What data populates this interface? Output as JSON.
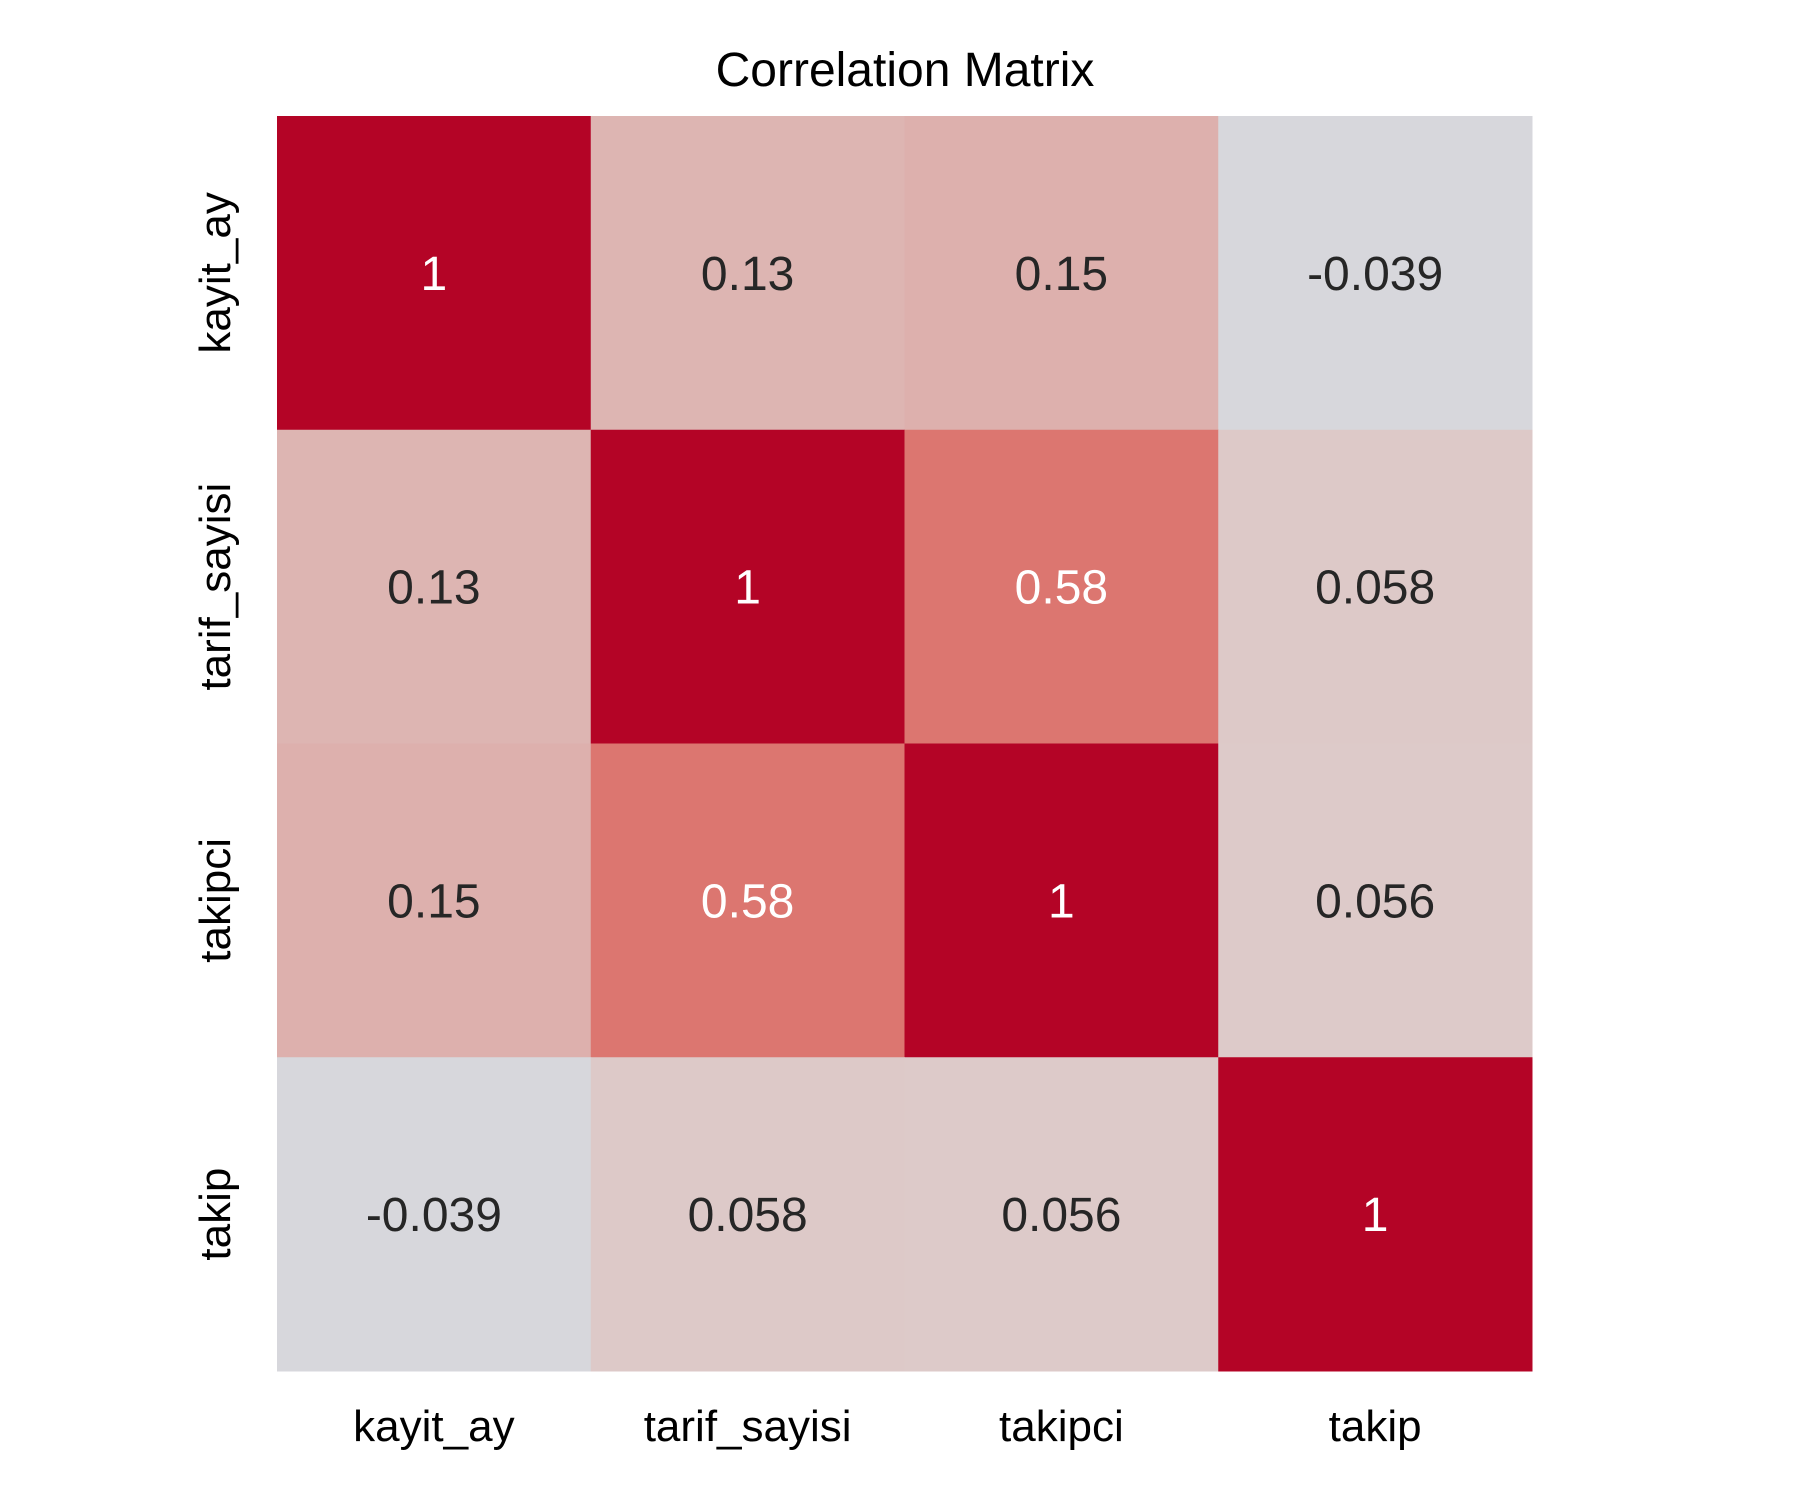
{
  "chart_data": {
    "type": "heatmap",
    "title": "Correlation Matrix",
    "x_categories": [
      "kayit_ay",
      "tarif_sayisi",
      "takipci",
      "takip"
    ],
    "y_categories": [
      "kayit_ay",
      "tarif_sayisi",
      "takipci",
      "takip"
    ],
    "matrix": [
      [
        1,
        0.13,
        0.15,
        -0.039
      ],
      [
        0.13,
        1,
        0.58,
        0.058
      ],
      [
        0.15,
        0.58,
        1,
        0.056
      ],
      [
        -0.039,
        0.058,
        0.056,
        1
      ]
    ],
    "cell_labels": [
      [
        "1",
        "0.13",
        "0.15",
        "-0.039"
      ],
      [
        "0.13",
        "1",
        "0.58",
        "0.058"
      ],
      [
        "0.15",
        "0.58",
        "1",
        "0.056"
      ],
      [
        "-0.039",
        "0.058",
        "0.056",
        "1"
      ]
    ],
    "colormap": "coolwarm",
    "value_range": [
      -1,
      1
    ],
    "colorbar": false,
    "grid": false,
    "colors": {
      "low": "#3b4cc0",
      "mid": "#dddddd",
      "high": "#b40426",
      "text_dark": "#262626",
      "text_light": "#ffffff"
    }
  }
}
